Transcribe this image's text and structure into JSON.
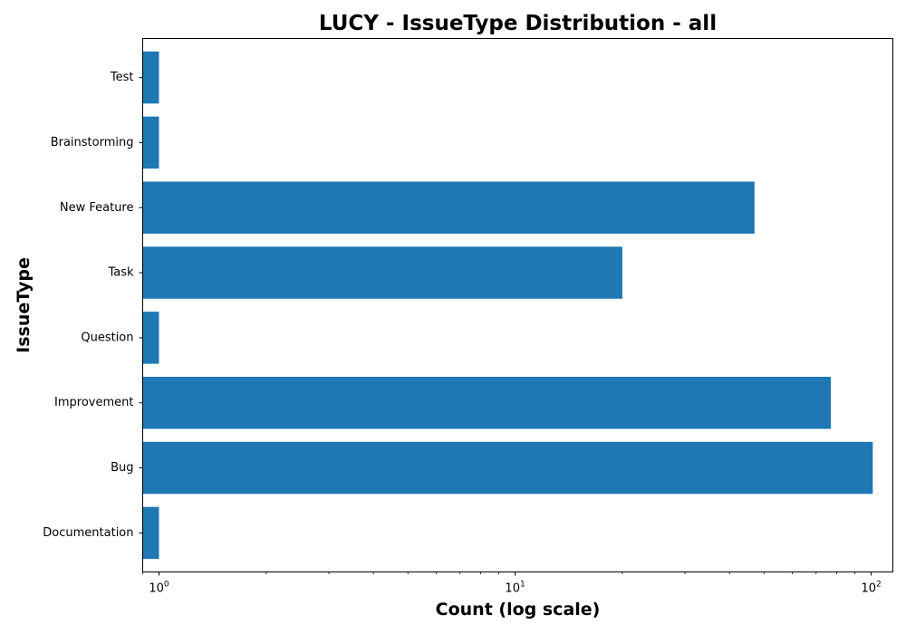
{
  "chart_data": {
    "type": "bar",
    "orientation": "horizontal",
    "title": "LUCY - IssueType Distribution - all",
    "xlabel": "Count (log scale)",
    "ylabel": "IssueType",
    "xscale": "log",
    "xlim": [
      0.9,
      115
    ],
    "x_ticks": [
      {
        "value": 1,
        "base": "10",
        "exp": "0"
      },
      {
        "value": 10,
        "base": "10",
        "exp": "1"
      },
      {
        "value": 100,
        "base": "10",
        "exp": "2"
      }
    ],
    "categories": [
      "Documentation",
      "Bug",
      "Improvement",
      "Question",
      "Task",
      "New Feature",
      "Brainstorming",
      "Test"
    ],
    "values": [
      1,
      101,
      77,
      1,
      20,
      47,
      1,
      1
    ],
    "bar_color": "#1f77b4",
    "grid": false
  }
}
